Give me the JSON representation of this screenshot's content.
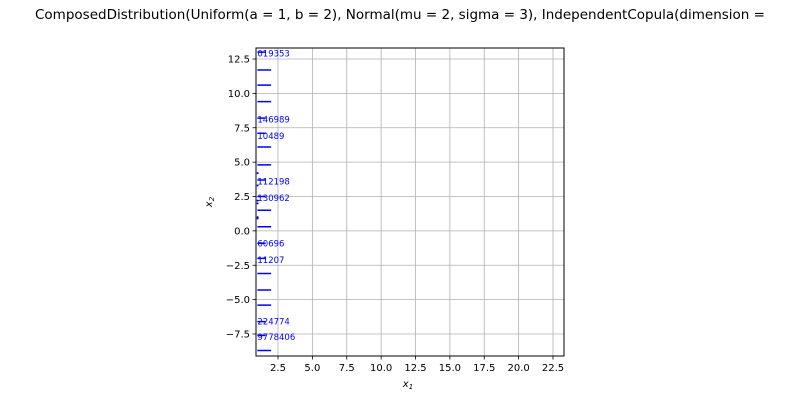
{
  "chart_data": {
    "type": "scatter",
    "title": "ComposedDistribution(Uniform(a = 1, b = 2), Normal(mu = 2, sigma = 3), IndependentCopula(dimension =",
    "xlabel": "x",
    "xlabel_sub": "1",
    "ylabel": "x",
    "ylabel_sub": "2",
    "xlim": [
      0.9,
      23.3
    ],
    "ylim": [
      -9.1,
      13.3
    ],
    "grid": true,
    "x_ticks": [
      2.5,
      5.0,
      7.5,
      10.0,
      12.5,
      15.0,
      17.5,
      20.0,
      22.5
    ],
    "x_tick_labels": [
      "2.5",
      "5.0",
      "7.5",
      "10.0",
      "12.5",
      "15.0",
      "17.5",
      "20.0",
      "22.5"
    ],
    "y_ticks": [
      -7.5,
      -5.0,
      -2.5,
      0.0,
      2.5,
      5.0,
      7.5,
      10.0,
      12.5
    ],
    "y_tick_labels": [
      "−7.5",
      "−5.0",
      "−2.5",
      "0.0",
      "2.5",
      "5.0",
      "7.5",
      "10.0",
      "12.5"
    ],
    "colors": {
      "marks": "#0000ff",
      "grid": "#b0b0b0",
      "axes": "#000000"
    },
    "segments": [
      {
        "y": 13.0,
        "x0": 1.0,
        "x1": 1.6
      },
      {
        "y": 11.7,
        "x0": 1.0,
        "x1": 2.0
      },
      {
        "y": 10.6,
        "x0": 1.0,
        "x1": 2.0
      },
      {
        "y": 9.4,
        "x0": 1.0,
        "x1": 2.0
      },
      {
        "y": 8.2,
        "x0": 1.0,
        "x1": 1.6
      },
      {
        "y": 7.1,
        "x0": 1.0,
        "x1": 1.6
      },
      {
        "y": 6.1,
        "x0": 1.0,
        "x1": 2.0
      },
      {
        "y": 4.8,
        "x0": 1.0,
        "x1": 2.0
      },
      {
        "y": 3.7,
        "x0": 1.0,
        "x1": 1.6
      },
      {
        "y": 2.5,
        "x0": 1.0,
        "x1": 1.6
      },
      {
        "y": 1.5,
        "x0": 1.0,
        "x1": 2.0
      },
      {
        "y": 0.3,
        "x0": 1.0,
        "x1": 2.0
      },
      {
        "y": -0.9,
        "x0": 1.0,
        "x1": 1.6
      },
      {
        "y": -2.0,
        "x0": 1.0,
        "x1": 1.6
      },
      {
        "y": -3.1,
        "x0": 1.0,
        "x1": 2.0
      },
      {
        "y": -4.3,
        "x0": 1.0,
        "x1": 2.0
      },
      {
        "y": -5.4,
        "x0": 1.0,
        "x1": 2.0
      },
      {
        "y": -6.6,
        "x0": 1.0,
        "x1": 1.6
      },
      {
        "y": -7.6,
        "x0": 1.0,
        "x1": 1.6
      },
      {
        "y": -8.7,
        "x0": 1.0,
        "x1": 2.0
      }
    ],
    "points": [
      {
        "x": 1.02,
        "y": 4.2
      },
      {
        "x": 1.02,
        "y": 3.3
      },
      {
        "x": 1.02,
        "y": 2.2
      },
      {
        "x": 1.02,
        "y": 1.0
      },
      {
        "x": 1.02,
        "y": 0.9
      },
      {
        "x": 1.02,
        "y": 2.0
      }
    ],
    "annotations": [
      {
        "text": "019353",
        "x": 1.0,
        "y": 12.9
      },
      {
        "text": "146989",
        "x": 1.0,
        "y": 8.1
      },
      {
        "text": "10489",
        "x": 1.0,
        "y": 6.9
      },
      {
        "text": "112198",
        "x": 1.0,
        "y": 3.6
      },
      {
        "text": "130962",
        "x": 1.0,
        "y": 2.4
      },
      {
        "text": "60696",
        "x": 1.0,
        "y": -0.9
      },
      {
        "text": "11207",
        "x": 1.0,
        "y": -2.1
      },
      {
        "text": "224774",
        "x": 1.0,
        "y": -6.6
      },
      {
        "text": "9778406",
        "x": 1.0,
        "y": -7.7
      }
    ]
  }
}
